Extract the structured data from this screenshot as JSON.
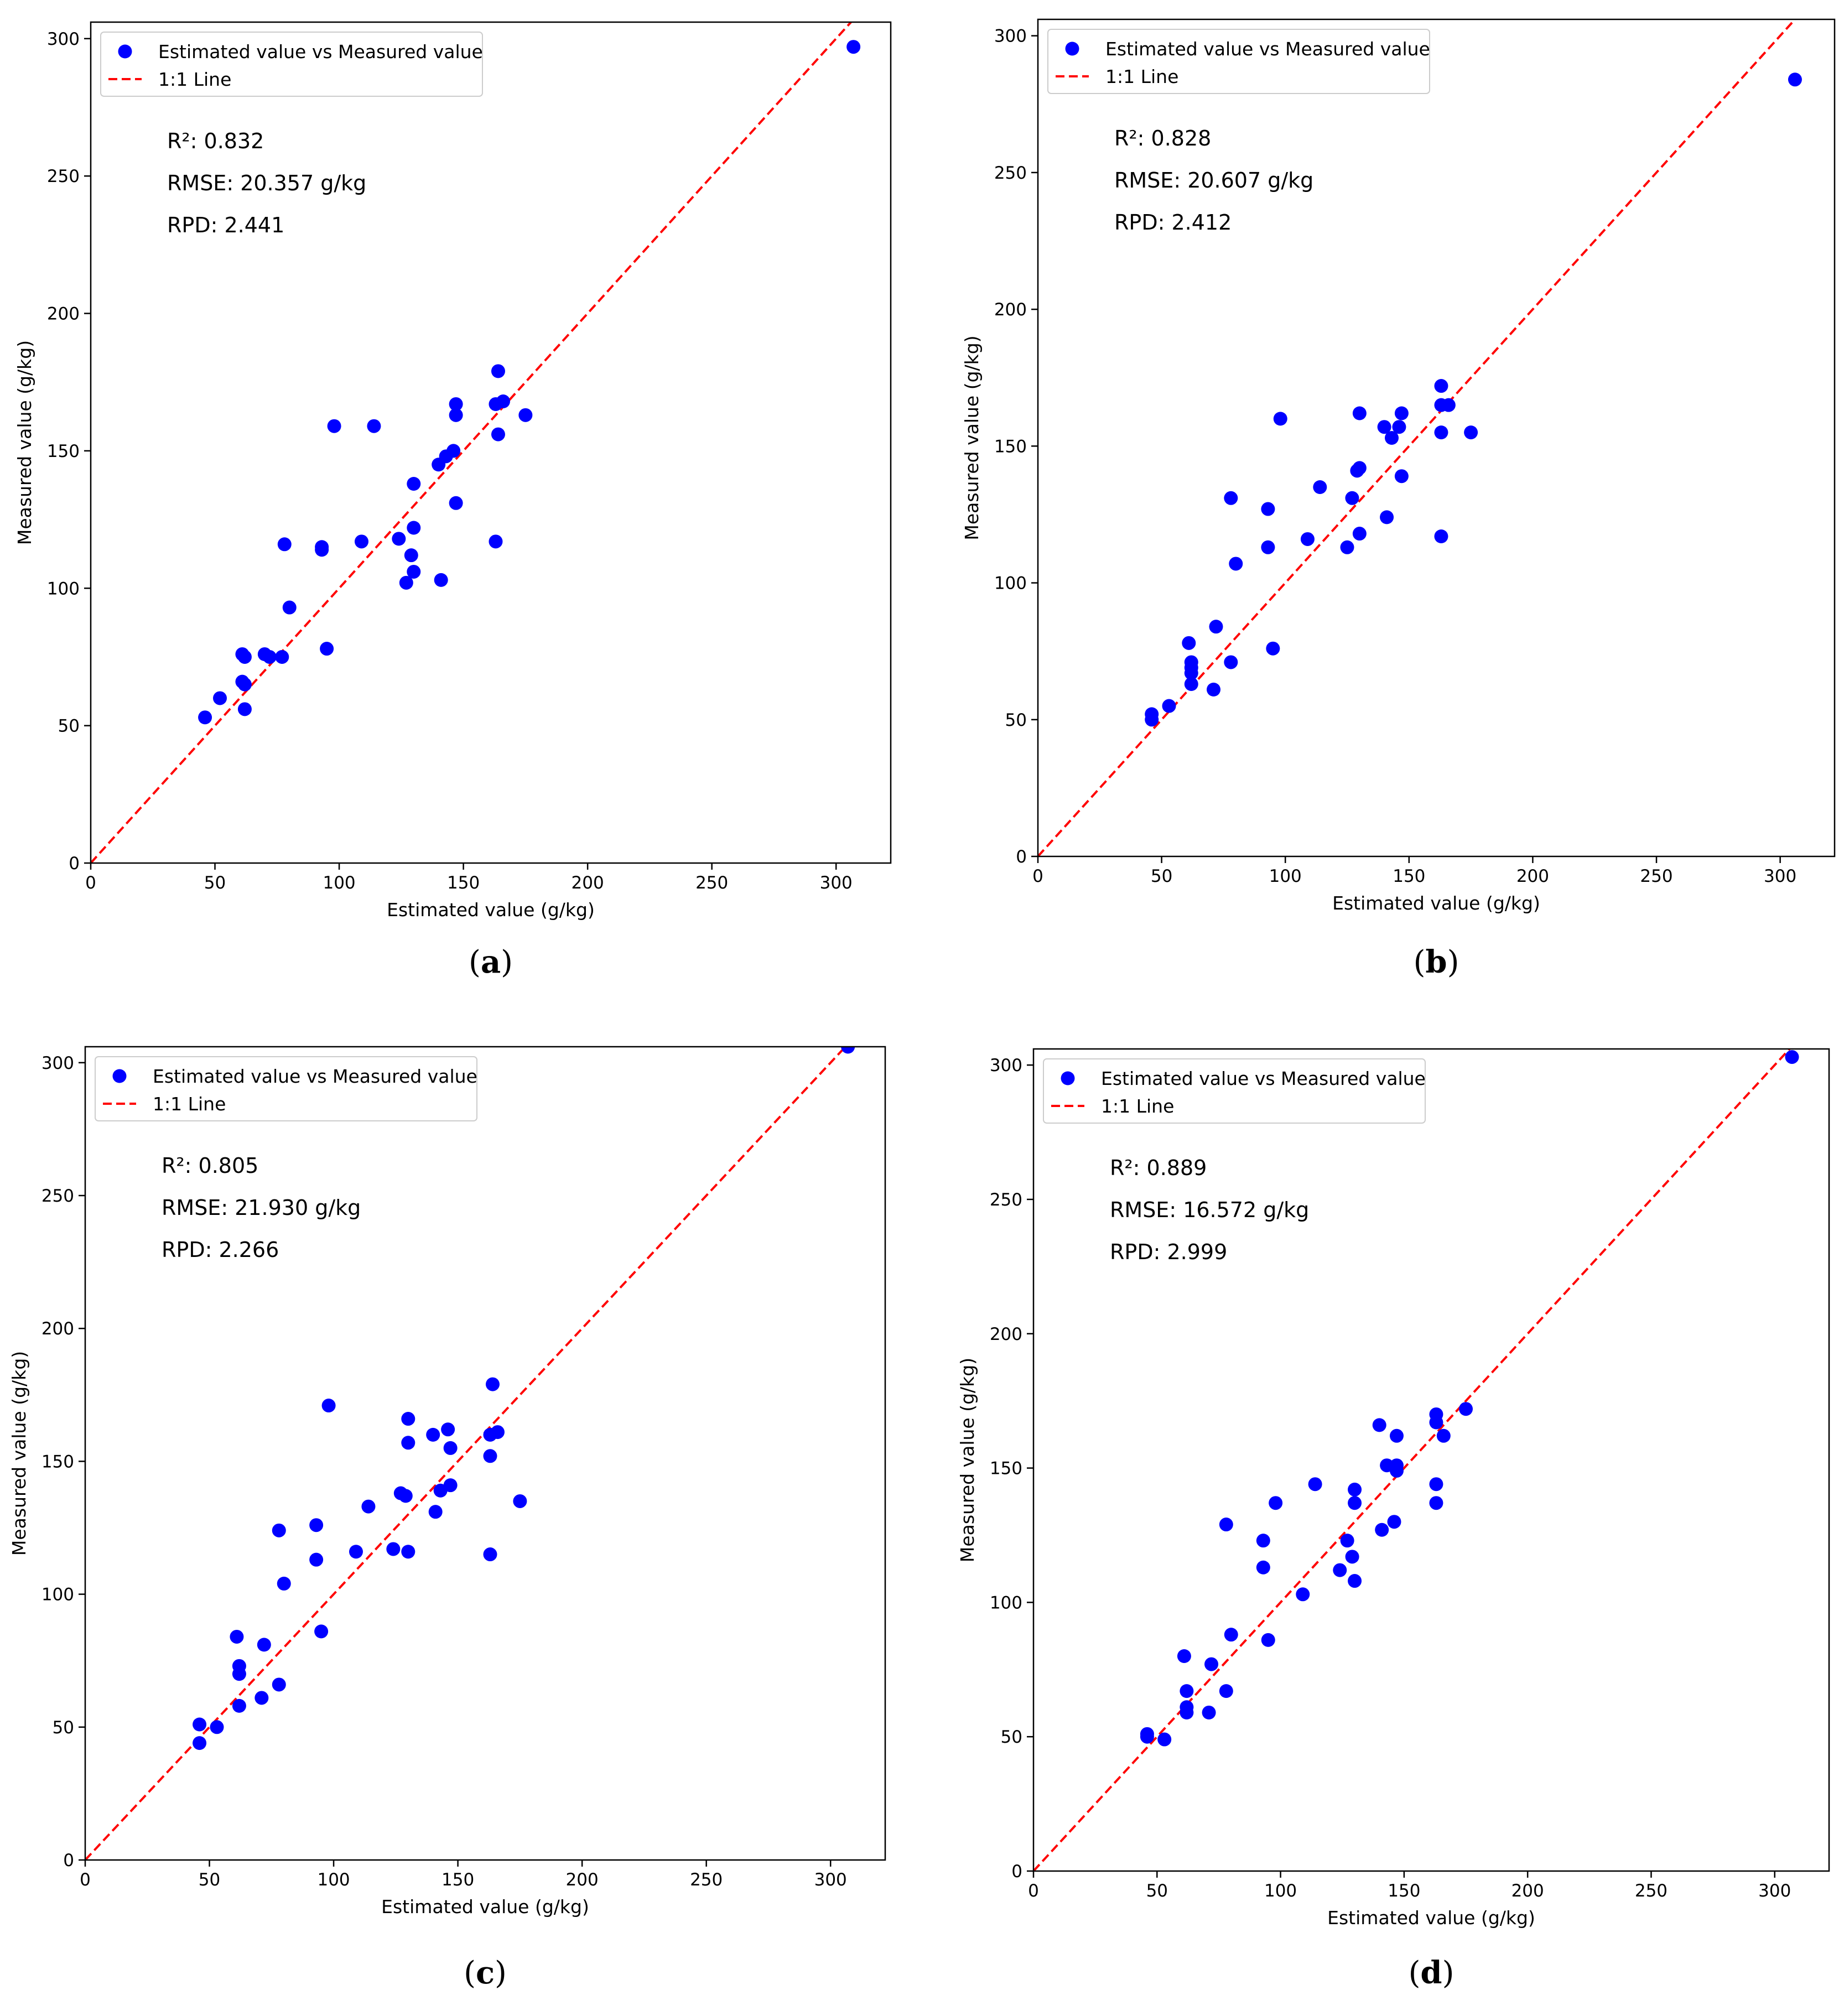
{
  "figure": {
    "panels": [
      {
        "label_open": "(",
        "label_letter": "a",
        "label_close": ")"
      },
      {
        "label_open": "(",
        "label_letter": "b",
        "label_close": ")"
      },
      {
        "label_open": "(",
        "label_letter": "c",
        "label_close": ")"
      },
      {
        "label_open": "(",
        "label_letter": "d",
        "label_close": ")"
      }
    ]
  },
  "colors": {
    "points": "#0000ff",
    "one_to_one_line": "#ff0000",
    "axes": "#000000",
    "legend_border": "#cccccc"
  },
  "chart_data": [
    {
      "type": "scatter",
      "xlabel": "Estimated value (g/kg)",
      "ylabel": "Measured value (g/kg)",
      "xlim": [
        0,
        322
      ],
      "ylim": [
        0,
        306
      ],
      "xticks": [
        0,
        50,
        100,
        150,
        200,
        250,
        300
      ],
      "yticks": [
        0,
        50,
        100,
        150,
        200,
        250,
        300
      ],
      "legend": {
        "position": "top-left",
        "entries": [
          "Estimated value vs Measured value",
          "1:1 Line"
        ]
      },
      "metrics": [
        "R²: 0.832",
        "RMSE: 20.357 g/kg",
        "RPD: 2.441"
      ],
      "series": [
        {
          "name": "Estimated value vs Measured value",
          "points": [
            [
              307,
              297
            ],
            [
              46,
              53
            ],
            [
              52,
              60
            ],
            [
              61,
              76
            ],
            [
              62,
              75
            ],
            [
              61,
              66
            ],
            [
              62,
              65
            ],
            [
              62,
              56
            ],
            [
              70,
              76
            ],
            [
              72,
              75
            ],
            [
              77,
              75
            ],
            [
              78,
              116
            ],
            [
              80,
              93
            ],
            [
              93,
              115
            ],
            [
              93,
              114
            ],
            [
              95,
              78
            ],
            [
              98,
              159
            ],
            [
              109,
              117
            ],
            [
              114,
              159
            ],
            [
              124,
              118
            ],
            [
              127,
              102
            ],
            [
              129,
              112
            ],
            [
              130,
              106
            ],
            [
              130,
              138
            ],
            [
              130,
              122
            ],
            [
              140,
              145
            ],
            [
              141,
              103
            ],
            [
              143,
              148
            ],
            [
              146,
              150
            ],
            [
              147,
              167
            ],
            [
              147,
              163
            ],
            [
              147,
              131
            ],
            [
              163,
              117
            ],
            [
              163,
              167
            ],
            [
              164,
              179
            ],
            [
              164,
              156
            ],
            [
              166,
              168
            ],
            [
              175,
              163
            ]
          ]
        }
      ]
    },
    {
      "type": "scatter",
      "xlabel": "Estimated value (g/kg)",
      "ylabel": "Measured value (g/kg)",
      "xlim": [
        0,
        322
      ],
      "ylim": [
        0,
        306
      ],
      "xticks": [
        0,
        50,
        100,
        150,
        200,
        250,
        300
      ],
      "yticks": [
        0,
        50,
        100,
        150,
        200,
        250,
        300
      ],
      "legend": {
        "position": "top-left",
        "entries": [
          "Estimated value vs Measured value",
          "1:1 Line"
        ]
      },
      "metrics": [
        "R²: 0.828",
        "RMSE: 20.607 g/kg",
        "RPD: 2.412"
      ],
      "series": [
        {
          "name": "Estimated value vs Measured value",
          "points": [
            [
              306,
              284
            ],
            [
              46,
              52
            ],
            [
              46,
              50
            ],
            [
              53,
              55
            ],
            [
              61,
              78
            ],
            [
              62,
              71
            ],
            [
              62,
              69
            ],
            [
              62,
              67
            ],
            [
              62,
              63
            ],
            [
              71,
              61
            ],
            [
              72,
              84
            ],
            [
              78,
              131
            ],
            [
              78,
              71
            ],
            [
              80,
              107
            ],
            [
              93,
              127
            ],
            [
              93,
              113
            ],
            [
              95,
              76
            ],
            [
              98,
              160
            ],
            [
              109,
              116
            ],
            [
              114,
              135
            ],
            [
              125,
              113
            ],
            [
              127,
              131
            ],
            [
              129,
              141
            ],
            [
              130,
              142
            ],
            [
              130,
              162
            ],
            [
              130,
              118
            ],
            [
              140,
              157
            ],
            [
              141,
              124
            ],
            [
              143,
              153
            ],
            [
              146,
              157
            ],
            [
              147,
              162
            ],
            [
              147,
              139
            ],
            [
              163,
              172
            ],
            [
              163,
              165
            ],
            [
              163,
              155
            ],
            [
              163,
              117
            ],
            [
              166,
              165
            ],
            [
              175,
              155
            ]
          ]
        }
      ]
    },
    {
      "type": "scatter",
      "xlabel": "Estimated value (g/kg)",
      "ylabel": "Measured value (g/kg)",
      "xlim": [
        0,
        322
      ],
      "ylim": [
        0,
        306
      ],
      "xticks": [
        0,
        50,
        100,
        150,
        200,
        250,
        300
      ],
      "yticks": [
        0,
        50,
        100,
        150,
        200,
        250,
        300
      ],
      "legend": {
        "position": "top-left",
        "entries": [
          "Estimated value vs Measured value",
          "1:1 Line"
        ]
      },
      "metrics": [
        "R²: 0.805",
        "RMSE: 21.930 g/kg",
        "RPD: 2.266"
      ],
      "series": [
        {
          "name": "Estimated value vs Measured value",
          "points": [
            [
              307,
              306
            ],
            [
              46,
              51
            ],
            [
              46,
              44
            ],
            [
              53,
              50
            ],
            [
              61,
              84
            ],
            [
              62,
              73
            ],
            [
              62,
              70
            ],
            [
              62,
              58
            ],
            [
              71,
              61
            ],
            [
              72,
              81
            ],
            [
              78,
              124
            ],
            [
              78,
              66
            ],
            [
              80,
              104
            ],
            [
              93,
              126
            ],
            [
              93,
              113
            ],
            [
              95,
              86
            ],
            [
              98,
              171
            ],
            [
              109,
              116
            ],
            [
              114,
              133
            ],
            [
              124,
              117
            ],
            [
              127,
              138
            ],
            [
              129,
              137
            ],
            [
              130,
              116
            ],
            [
              130,
              166
            ],
            [
              130,
              157
            ],
            [
              140,
              160
            ],
            [
              141,
              131
            ],
            [
              143,
              139
            ],
            [
              146,
              162
            ],
            [
              147,
              155
            ],
            [
              147,
              141
            ],
            [
              163,
              160
            ],
            [
              163,
              152
            ],
            [
              163,
              115
            ],
            [
              164,
              179
            ],
            [
              166,
              161
            ],
            [
              175,
              135
            ]
          ]
        }
      ]
    },
    {
      "type": "scatter",
      "xlabel": "Estimated value (g/kg)",
      "ylabel": "Measured value (g/kg)",
      "xlim": [
        0,
        322
      ],
      "ylim": [
        0,
        306
      ],
      "xticks": [
        0,
        50,
        100,
        150,
        200,
        250,
        300
      ],
      "yticks": [
        0,
        50,
        100,
        150,
        200,
        250,
        300
      ],
      "legend": {
        "position": "top-left",
        "entries": [
          "Estimated value vs Measured value",
          "1:1 Line"
        ]
      },
      "metrics": [
        "R²: 0.889",
        "RMSE: 16.572 g/kg",
        "RPD: 2.999"
      ],
      "series": [
        {
          "name": "Estimated value vs Measured value",
          "points": [
            [
              307,
              303
            ],
            [
              46,
              51
            ],
            [
              46,
              50
            ],
            [
              53,
              49
            ],
            [
              61,
              80
            ],
            [
              62,
              67
            ],
            [
              62,
              61
            ],
            [
              62,
              59
            ],
            [
              71,
              59
            ],
            [
              72,
              77
            ],
            [
              78,
              129
            ],
            [
              78,
              67
            ],
            [
              80,
              88
            ],
            [
              93,
              123
            ],
            [
              93,
              113
            ],
            [
              95,
              86
            ],
            [
              98,
              137
            ],
            [
              109,
              103
            ],
            [
              114,
              144
            ],
            [
              124,
              112
            ],
            [
              127,
              123
            ],
            [
              129,
              117
            ],
            [
              130,
              142
            ],
            [
              130,
              137
            ],
            [
              130,
              108
            ],
            [
              140,
              166
            ],
            [
              141,
              127
            ],
            [
              143,
              151
            ],
            [
              146,
              130
            ],
            [
              147,
              162
            ],
            [
              147,
              151
            ],
            [
              147,
              149
            ],
            [
              163,
              170
            ],
            [
              163,
              167
            ],
            [
              163,
              144
            ],
            [
              163,
              137
            ],
            [
              166,
              162
            ],
            [
              175,
              172
            ]
          ]
        }
      ]
    }
  ]
}
